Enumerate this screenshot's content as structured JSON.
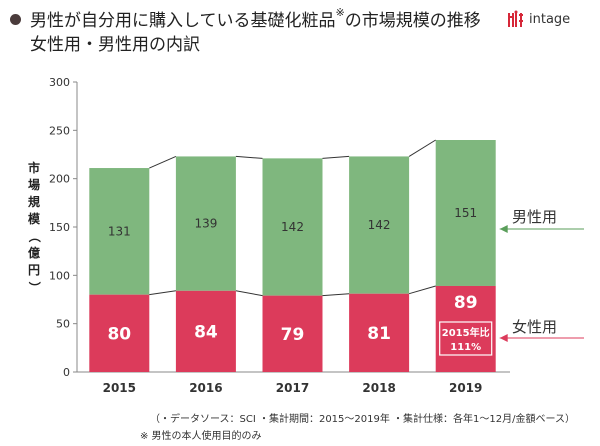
{
  "header": {
    "title_main": "男性が自分用に購入している基礎化粧品",
    "title_mark": "※",
    "title_rest": "の市場規模の推移",
    "subtitle": "女性用・男性用の内訳",
    "logo_text": "intage"
  },
  "colors": {
    "male": "#7fb77e",
    "female": "#dc3b5b",
    "arrow": "#5a9e5a",
    "axis": "#888888",
    "grid": "#dddddd"
  },
  "chart_data": {
    "type": "bar",
    "stacked": true,
    "ylabel": "市場規模（億円）",
    "ylim": [
      0,
      300
    ],
    "yticks": [
      "0",
      "50",
      "100",
      "150",
      "200",
      "250",
      "300"
    ],
    "categories": [
      "2015",
      "2016",
      "2017",
      "2018",
      "2019"
    ],
    "series": [
      {
        "name": "女性用",
        "values": [
          80,
          84,
          79,
          81,
          89
        ],
        "labels": [
          "80",
          "84",
          "79",
          "81",
          "89"
        ]
      },
      {
        "name": "男性用",
        "values": [
          131,
          139,
          142,
          142,
          151
        ],
        "labels": [
          "131",
          "139",
          "142",
          "142",
          "151"
        ]
      }
    ],
    "annotation": {
      "category": "2019",
      "line1": "2015年比",
      "line2": "111%"
    }
  },
  "footnotes": {
    "line1": "（・データソース：SCI ・集計期間：2015～2019年 ・集計仕様：各年1～12月/金額ベース）",
    "line2": "※ 男性の本人使用目的のみ"
  }
}
